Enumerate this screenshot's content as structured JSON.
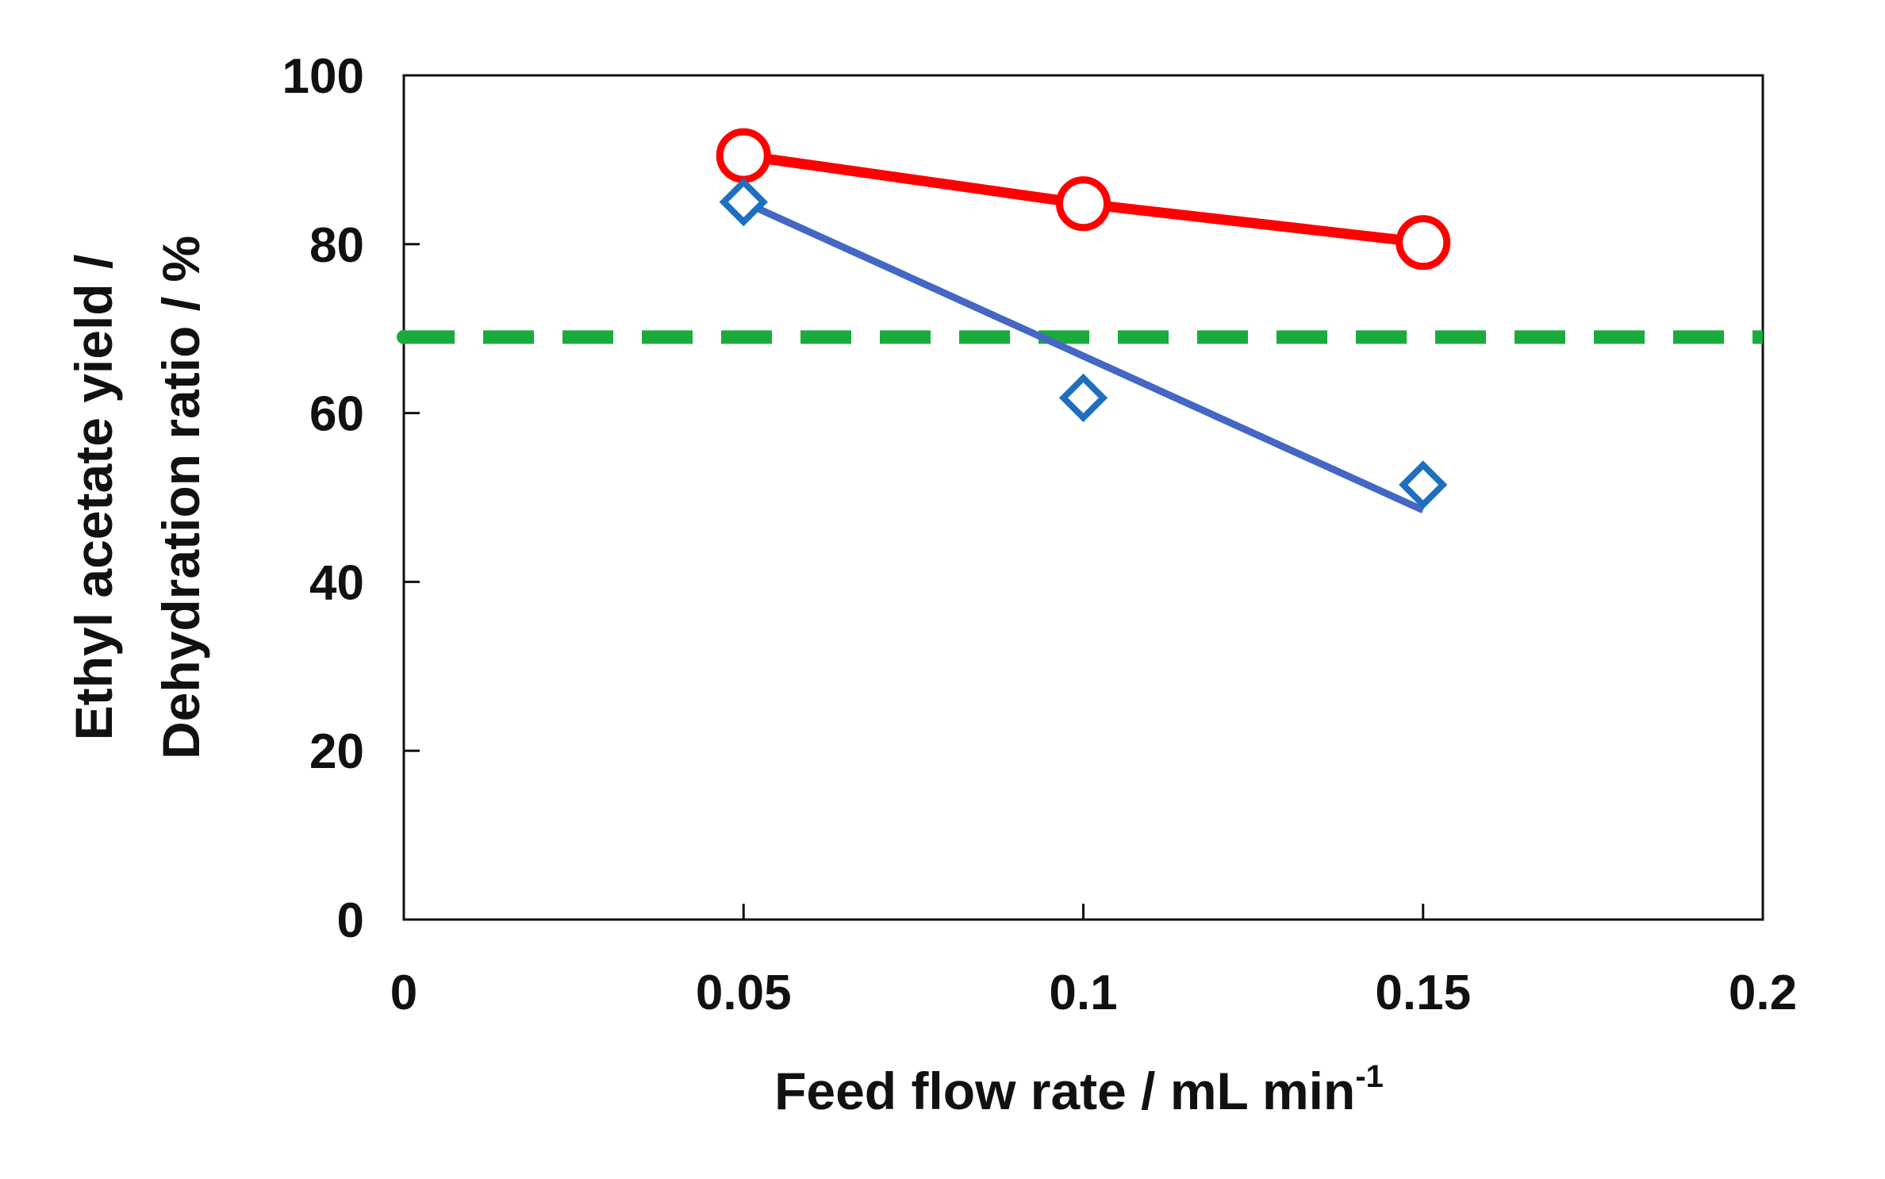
{
  "chart_data": {
    "type": "line",
    "title": "",
    "xlabel": "Feed flow rate / mL min",
    "xlabel_superscript": "-1",
    "ylabel_line1": "Ethyl acetate yield /",
    "ylabel_line2": "Dehydration ratio / %",
    "xlim": [
      0,
      0.2
    ],
    "ylim": [
      0,
      100
    ],
    "xticks": [
      0,
      0.05,
      0.1,
      0.15,
      0.2
    ],
    "xtick_labels": [
      "0",
      "0.05",
      "0.1",
      "0.15",
      "0.2"
    ],
    "yticks": [
      0,
      20,
      40,
      60,
      80,
      100
    ],
    "ytick_labels": [
      "0",
      "20",
      "40",
      "60",
      "80",
      "100"
    ],
    "grid": false,
    "legend": null,
    "series": [
      {
        "name": "Ethyl acetate yield (circles)",
        "marker": "circle",
        "color": "#ff0000",
        "x": [
          0.05,
          0.1,
          0.15
        ],
        "y": [
          90.5,
          84.8,
          80.2
        ],
        "line": "connected"
      },
      {
        "name": "Dehydration ratio (diamonds)",
        "marker": "diamond",
        "color": "#1f6fbf",
        "x": [
          0.05,
          0.1,
          0.15
        ],
        "y": [
          85.0,
          61.8,
          51.5
        ],
        "line": "linear-fit",
        "line_color": "#4466c4",
        "fit_start": [
          0.05,
          85.0
        ],
        "fit_end": [
          0.15,
          48.5
        ]
      }
    ],
    "reference_lines": [
      {
        "name": "Reference level (dashed)",
        "orientation": "horizontal",
        "y": 69,
        "color": "#1aab3c",
        "style": "dashed"
      }
    ]
  }
}
